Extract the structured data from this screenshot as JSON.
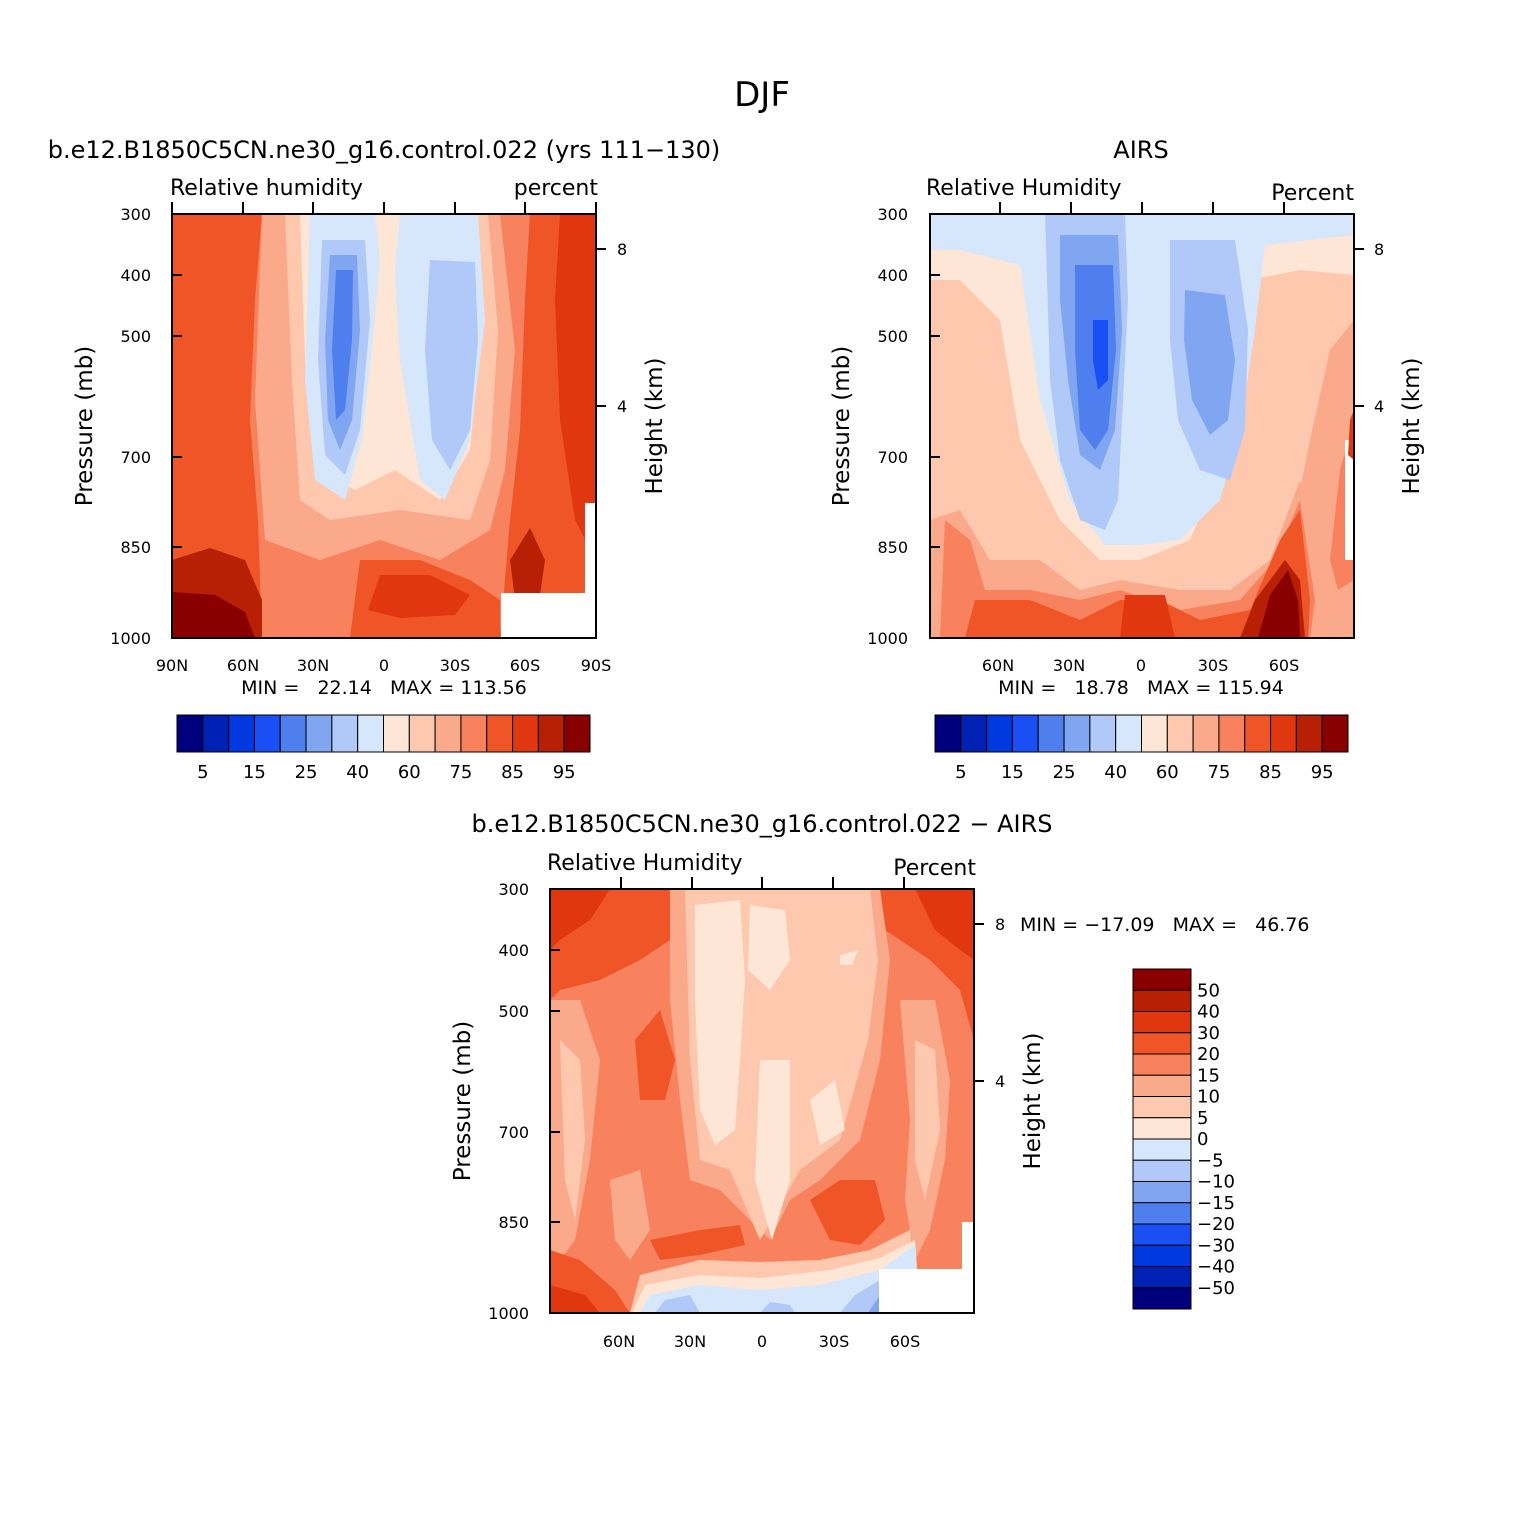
{
  "figure": {
    "title": "DJF"
  },
  "colorbars": {
    "abs": {
      "labels": [
        "5",
        "15",
        "25",
        "40",
        "60",
        "75",
        "85",
        "95"
      ],
      "colors": [
        "#00007f",
        "#0022b4",
        "#0039e0",
        "#1a4ff5",
        "#4f7fee",
        "#80a6f2",
        "#b1c9f8",
        "#d6e7fc",
        "#fde6d6",
        "#fdc8ae",
        "#fba98b",
        "#f8815e",
        "#f05528",
        "#e03710",
        "#b82006",
        "#8a0000"
      ]
    },
    "diff": {
      "labels": [
        "50",
        "40",
        "30",
        "20",
        "15",
        "10",
        "5",
        "0",
        "−5",
        "−10",
        "−15",
        "−20",
        "−30",
        "−40",
        "−50"
      ],
      "colors": [
        "#8a0000",
        "#b82006",
        "#e03710",
        "#f05528",
        "#f8815e",
        "#fba98b",
        "#fdc8ae",
        "#fde6d6",
        "#d6e7fc",
        "#b1c9f8",
        "#80a6f2",
        "#4f7fee",
        "#1a4ff5",
        "#0039e0",
        "#0022b4",
        "#00007f"
      ]
    }
  },
  "panels": {
    "model": {
      "title": "b.e12.B1850C5CN.ne30_g16.control.022 (yrs 111−130)",
      "left_string": "Relative humidity",
      "right_string": "percent",
      "ylabel": "Pressure (mb)",
      "ylabel_right": "Height (km)",
      "stats": "MIN =   22.14   MAX = 113.56",
      "x_ticks": [
        "90N",
        "60N",
        "30N",
        "0",
        "30S",
        "60S",
        "90S"
      ],
      "y_ticks": [
        "300",
        "400",
        "500",
        "700",
        "850",
        "1000"
      ],
      "height_ticks": [
        "8",
        "4"
      ]
    },
    "obs": {
      "title": "AIRS",
      "left_string": "Relative Humidity",
      "right_string": "Percent",
      "ylabel": "Pressure (mb)",
      "ylabel_right": "Height (km)",
      "stats": "MIN =   18.78   MAX = 115.94",
      "x_ticks": [
        "60N",
        "30N",
        "0",
        "30S",
        "60S"
      ],
      "y_ticks": [
        "300",
        "400",
        "500",
        "700",
        "850",
        "1000"
      ],
      "height_ticks": [
        "8",
        "4"
      ]
    },
    "diff": {
      "title": "b.e12.B1850C5CN.ne30_g16.control.022 − AIRS",
      "left_string": "Relative Humidity",
      "right_string": "Percent",
      "ylabel": "Pressure (mb)",
      "ylabel_right": "Height (km)",
      "stats": "MIN = −17.09   MAX =   46.76",
      "x_ticks": [
        "60N",
        "30N",
        "0",
        "30S",
        "60S"
      ],
      "y_ticks": [
        "300",
        "400",
        "500",
        "700",
        "850",
        "1000"
      ],
      "height_ticks": [
        "8",
        "4"
      ]
    }
  },
  "chart_data": [
    {
      "type": "heatmap",
      "title": "b.e12.B1850C5CN.ne30_g16.control.022 (yrs 111−130)",
      "variable": "Relative humidity",
      "units": "percent",
      "xlabel": "",
      "ylabel": "Pressure (mb)",
      "x_ticks": [
        "90N",
        "60N",
        "30N",
        "0",
        "30S",
        "60S",
        "90S"
      ],
      "xlim": [
        90,
        -90
      ],
      "y_ticks": [
        300,
        400,
        500,
        700,
        850,
        1000
      ],
      "ylim": [
        1000,
        300
      ],
      "y_scale": "log",
      "height_ticks_km": [
        8,
        4
      ],
      "min": 22.14,
      "max": 113.56,
      "contour_levels": [
        5,
        10,
        15,
        20,
        25,
        30,
        40,
        50,
        60,
        70,
        75,
        80,
        85,
        90,
        95
      ],
      "masked_region": {
        "lat": [
          -51,
          -90
        ],
        "p": [
          910,
          1000
        ]
      },
      "features": [
        {
          "lat": -2,
          "p": 800,
          "value": "about 60 percent"
        },
        {
          "lat": 20,
          "p": 500,
          "value": "20–25 percent (minimum)"
        },
        {
          "lat": -23,
          "p": 500,
          "value": "30–40 percent"
        },
        {
          "lat": -10,
          "p": 930,
          "value": "about 85 percent"
        },
        {
          "lat": 78,
          "p": 950,
          "value": "above 95 percent"
        },
        {
          "lat": -70,
          "p": 450,
          "value": "about 85 percent"
        }
      ]
    },
    {
      "type": "heatmap",
      "title": "AIRS",
      "variable": "Relative Humidity",
      "units": "Percent",
      "xlabel": "",
      "ylabel": "Pressure (mb)",
      "x_ticks": [
        "60N",
        "30N",
        "0",
        "30S",
        "60S"
      ],
      "xlim": [
        90,
        -90
      ],
      "y_ticks": [
        300,
        400,
        500,
        700,
        850,
        1000
      ],
      "ylim": [
        1000,
        300
      ],
      "y_scale": "log",
      "height_ticks_km": [
        8,
        4
      ],
      "min": 18.78,
      "max": 115.94,
      "contour_levels": [
        5,
        10,
        15,
        20,
        25,
        30,
        40,
        50,
        60,
        70,
        75,
        80,
        85,
        90,
        95
      ],
      "features": [
        {
          "lat": 18,
          "p": 530,
          "value": "20–25 percent (minimum)"
        },
        {
          "lat": -30,
          "p": 520,
          "value": "30–40 percent"
        },
        {
          "lat": 0,
          "p": 600,
          "value": "about 50 percent"
        },
        {
          "lat": -62,
          "p": 950,
          "value": "above 95 percent"
        },
        {
          "lat": 0,
          "p": 950,
          "value": "about 85 percent"
        }
      ]
    },
    {
      "type": "heatmap",
      "title": "b.e12.B1850C5CN.ne30_g16.control.022 − AIRS",
      "variable": "Relative Humidity",
      "units": "Percent",
      "xlabel": "",
      "ylabel": "Pressure (mb)",
      "x_ticks": [
        "60N",
        "30N",
        "0",
        "30S",
        "60S"
      ],
      "xlim": [
        90,
        -90
      ],
      "y_ticks": [
        300,
        400,
        500,
        700,
        850,
        1000
      ],
      "ylim": [
        1000,
        300
      ],
      "y_scale": "log",
      "height_ticks_km": [
        8,
        4
      ],
      "min": -17.09,
      "max": 46.76,
      "contour_levels": [
        -50,
        -40,
        -30,
        -20,
        -15,
        -10,
        -5,
        0,
        5,
        10,
        15,
        20,
        30,
        40,
        50
      ],
      "masked_region": {
        "lat": [
          -49,
          -90
        ],
        "p": [
          910,
          1000
        ]
      },
      "features": [
        {
          "lat": 80,
          "p": 340,
          "value": "30–40 percent"
        },
        {
          "lat": -80,
          "p": 360,
          "value": "30–40 percent"
        },
        {
          "lat": 45,
          "p": 600,
          "value": "20–30 percent"
        },
        {
          "lat": -28,
          "p": 840,
          "value": "20–30 percent"
        },
        {
          "lat": 5,
          "p": 450,
          "value": "0–5 percent"
        },
        {
          "lat": -15,
          "p": 970,
          "value": "−5 to −15 percent"
        }
      ]
    }
  ]
}
